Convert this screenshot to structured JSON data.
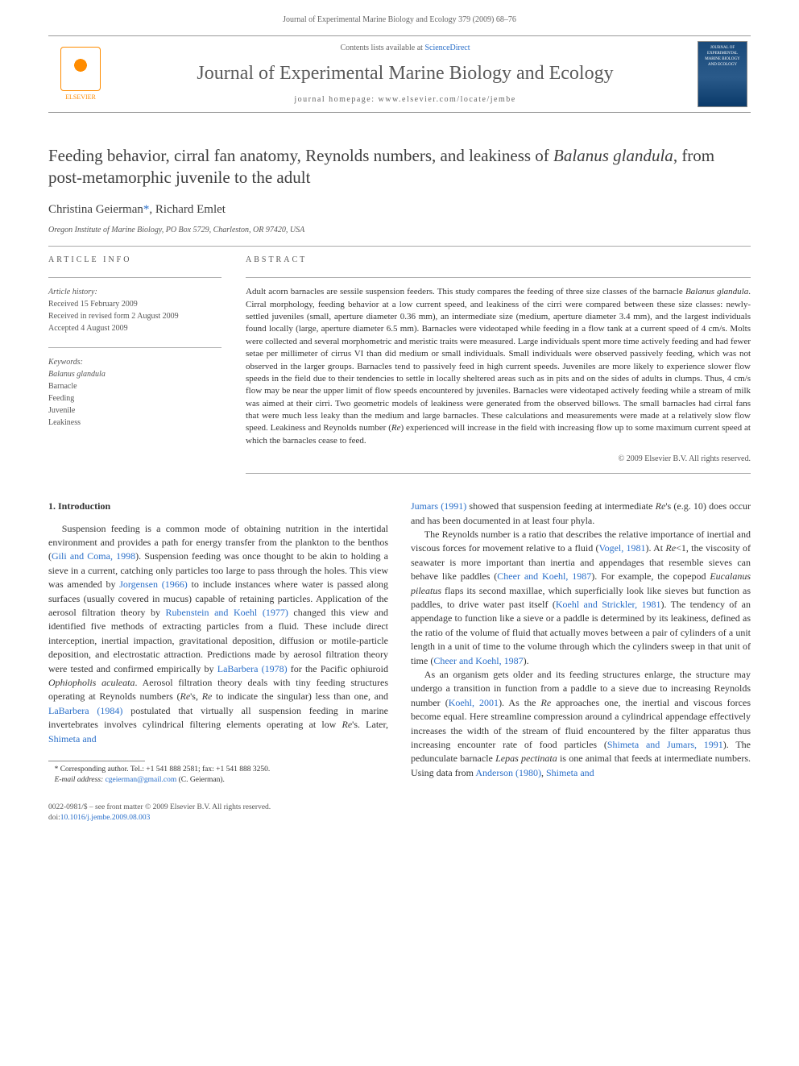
{
  "running_head": "Journal of Experimental Marine Biology and Ecology 379 (2009) 68–76",
  "masthead": {
    "publisher": "ELSEVIER",
    "contents_prefix": "Contents lists available at ",
    "contents_link": "ScienceDirect",
    "journal_name": "Journal of Experimental Marine Biology and Ecology",
    "homepage_label": "journal homepage: ",
    "homepage_url": "www.elsevier.com/locate/jembe",
    "cover_text": "JOURNAL OF EXPERIMENTAL MARINE BIOLOGY AND ECOLOGY"
  },
  "title_pre": "Feeding behavior, cirral fan anatomy, Reynolds numbers, and leakiness of ",
  "title_species": "Balanus glandula",
  "title_post": ", from post-metamorphic juvenile to the adult",
  "authors": {
    "a1": "Christina Geierman",
    "corr_mark": "*",
    "sep": ", ",
    "a2": "Richard Emlet"
  },
  "affiliation": "Oregon Institute of Marine Biology, PO Box 5729, Charleston, OR 97420, USA",
  "info_heading": "ARTICLE INFO",
  "abstract_heading": "ABSTRACT",
  "history": {
    "label": "Article history:",
    "received": "Received 15 February 2009",
    "revised": "Received in revised form 2 August 2009",
    "accepted": "Accepted 4 August 2009"
  },
  "keywords": {
    "label": "Keywords:",
    "k1": "Balanus glandula",
    "k2": "Barnacle",
    "k3": "Feeding",
    "k4": "Juvenile",
    "k5": "Leakiness"
  },
  "abstract": {
    "p1a": "Adult acorn barnacles are sessile suspension feeders. This study compares the feeding of three size classes of the barnacle ",
    "p1s": "Balanus glandula",
    "p1b": ". Cirral morphology, feeding behavior at a low current speed, and leakiness of the cirri were compared between these size classes: newly-settled juveniles (small, aperture diameter 0.36 mm), an intermediate size (medium, aperture diameter 3.4 mm), and the largest individuals found locally (large, aperture diameter 6.5 mm). Barnacles were videotaped while feeding in a flow tank at a current speed of 4 cm/s. Molts were collected and several morphometric and meristic traits were measured. Large individuals spent more time actively feeding and had fewer setae per millimeter of cirrus VI than did medium or small individuals. Small individuals were observed passively feeding, which was not observed in the larger groups. Barnacles tend to passively feed in high current speeds. Juveniles are more likely to experience slower flow speeds in the field due to their tendencies to settle in locally sheltered areas such as in pits and on the sides of adults in clumps. Thus, 4 cm/s flow may be near the upper limit of flow speeds encountered by juveniles. Barnacles were videotaped actively feeding while a stream of milk was aimed at their cirri. Two geometric models of leakiness were generated from the observed billows. The small barnacles had cirral fans that were much less leaky than the medium and large barnacles. These calculations and measurements were made at a relatively slow flow speed. Leakiness and Reynolds number (",
    "p1re": "Re",
    "p1c": ") experienced will increase in the field with increasing flow up to some maximum current speed at which the barnacles cease to feed."
  },
  "copyright": "© 2009 Elsevier B.V. All rights reserved.",
  "section1_heading": "1. Introduction",
  "col1": {
    "t1": "Suspension feeding is a common mode of obtaining nutrition in the intertidal environment and provides a path for energy transfer from the plankton to the benthos (",
    "l1": "Gili and Coma, 1998",
    "t2": "). Suspension feeding was once thought to be akin to holding a sieve in a current, catching only particles too large to pass through the holes. This view was amended by ",
    "l2": "Jorgensen (1966)",
    "t3": " to include instances where water is passed along surfaces (usually covered in mucus) capable of retaining particles. Application of the aerosol filtration theory by ",
    "l3": "Rubenstein and Koehl (1977)",
    "t4": " changed this view and identified five methods of extracting particles from a fluid. These include direct interception, inertial impaction, gravitational deposition, diffusion or motile-particle deposition, and electrostatic attraction. Predictions made by aerosol filtration theory were tested and confirmed empirically by ",
    "l4": "LaBarbera (1978)",
    "t5": " for the Pacific ophiuroid ",
    "sp1": "Ophiopholis aculeata",
    "t6": ". Aerosol filtration theory deals with tiny feeding structures operating at Reynolds numbers (",
    "re1": "Re",
    "t7": "'s, ",
    "re2": "Re",
    "t8": " to indicate the singular) less than one, and ",
    "l5": "LaBarbera (1984)",
    "t9": " postulated that virtually all suspension feeding in marine invertebrates involves cylindrical filtering elements operating at low ",
    "re3": "Re",
    "t10": "'s. Later, ",
    "l6": "Shimeta and"
  },
  "corr": {
    "line1a": "* Corresponding author. Tel.: +1 541 888 2581; fax: +1 541 888 3250.",
    "line2_lbl": "E-mail address: ",
    "line2_email": "cgeierman@gmail.com",
    "line2_who": " (C. Geierman)."
  },
  "col2": {
    "l1": "Jumars (1991)",
    "t1": " showed that suspension feeding at intermediate ",
    "re1": "Re",
    "t2": "'s (e.g. 10) does occur and has been documented in at least four phyla.",
    "p2a": "The Reynolds number is a ratio that describes the relative importance of inertial and viscous forces for movement relative to a fluid (",
    "p2l1": "Vogel, 1981",
    "p2b": "). At ",
    "p2re1": "Re",
    "p2c": "<1, the viscosity of seawater is more important than inertia and appendages that resemble sieves can behave like paddles (",
    "p2l2": "Cheer and Koehl, 1987",
    "p2d": "). For example, the copepod ",
    "p2sp1": "Eucalanus pileatus",
    "p2e": " flaps its second maxillae, which superficially look like sieves but function as paddles, to drive water past itself (",
    "p2l3": "Koehl and Strickler, 1981",
    "p2f": "). The tendency of an appendage to function like a sieve or a paddle is determined by its leakiness, defined as the ratio of the volume of fluid that actually moves between a pair of cylinders of a unit length in a unit of time to the volume through which the cylinders sweep in that unit of time (",
    "p2l4": "Cheer and Koehl, 1987",
    "p2g": ").",
    "p3a": "As an organism gets older and its feeding structures enlarge, the structure may undergo a transition in function from a paddle to a sieve due to increasing Reynolds number (",
    "p3l1": "Koehl, 2001",
    "p3b": "). As the ",
    "p3re1": "Re",
    "p3c": " approaches one, the inertial and viscous forces become equal. Here streamline compression around a cylindrical appendage effectively increases the width of the stream of fluid encountered by the filter apparatus thus increasing encounter rate of food particles (",
    "p3l2": "Shimeta and Jumars, 1991",
    "p3d": "). The pedunculate barnacle ",
    "p3sp1": "Lepas pectinata",
    "p3e": " is one animal that feeds at intermediate numbers. Using data from ",
    "p3l3": "Anderson (1980)",
    "p3f": ", ",
    "p3l4": "Shimeta and"
  },
  "footer": {
    "line1": "0022-0981/$ – see front matter © 2009 Elsevier B.V. All rights reserved.",
    "doi_lbl": "doi:",
    "doi": "10.1016/j.jembe.2009.08.003"
  },
  "colors": {
    "link": "#2a6fc9",
    "text": "#333333",
    "muted": "#666666",
    "rule": "#aaaaaa",
    "elsevier": "#ff8c00",
    "cover_top": "#1a4a7a",
    "cover_bot": "#0a3a6a"
  }
}
